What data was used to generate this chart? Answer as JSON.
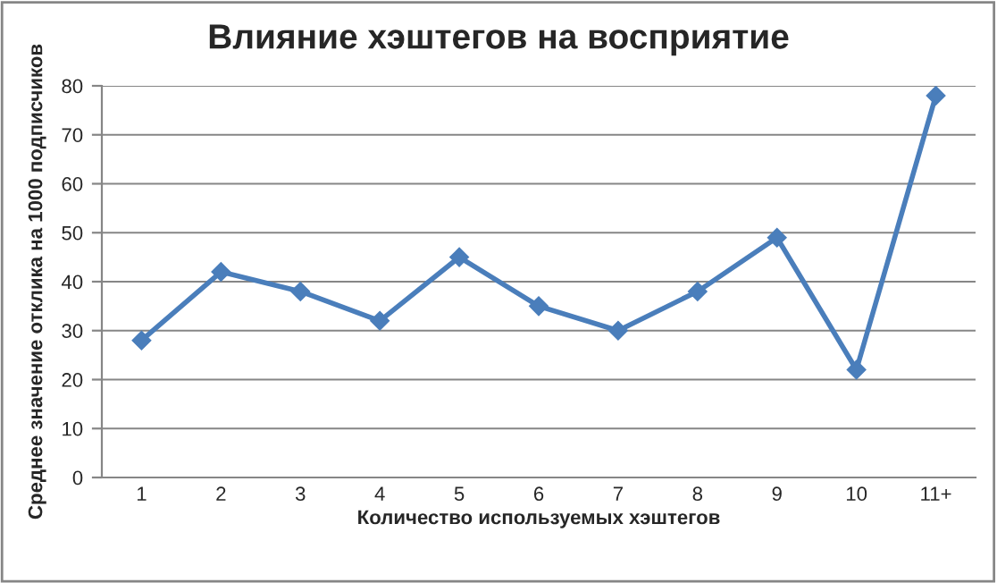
{
  "chart_data": {
    "type": "line",
    "title": "Влияние хэштегов на восприятие",
    "xlabel": "Количество используемых хэштегов",
    "ylabel": "Среднее значение отклика на 1000 подписчиков",
    "categories": [
      "1",
      "2",
      "3",
      "4",
      "5",
      "6",
      "7",
      "8",
      "9",
      "10",
      "11+"
    ],
    "series": [
      {
        "color": "#4a7ebb",
        "values": [
          28,
          42,
          38,
          32,
          45,
          35,
          30,
          38,
          49,
          22,
          78
        ]
      }
    ],
    "ylim": [
      0,
      80
    ],
    "yticks": [
      0,
      10,
      20,
      30,
      40,
      50,
      60,
      70,
      80
    ],
    "grid": "y",
    "legend": false,
    "marker": "diamond",
    "line_style": "solid"
  }
}
